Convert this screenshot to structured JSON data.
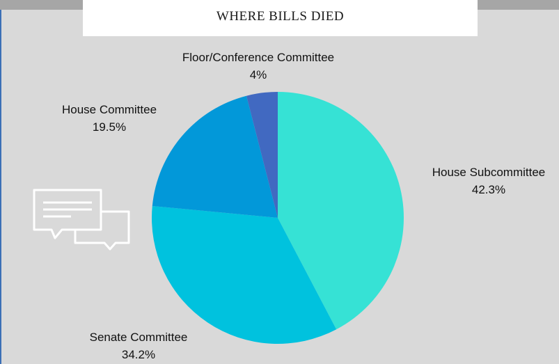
{
  "chart_data": {
    "type": "pie",
    "title": "WHERE BILLS DIED",
    "slices": [
      {
        "label": "House Subcommittee",
        "value": 42.3,
        "value_label": "42.3%",
        "color": "#36e2d5"
      },
      {
        "label": "Senate Committee",
        "value": 34.2,
        "value_label": "34.2%",
        "color": "#00c2de"
      },
      {
        "label": "House Committee",
        "value": 19.5,
        "value_label": "19.5%",
        "color": "#0298d9"
      },
      {
        "label": "Floor/Conference Committee",
        "value": 4,
        "value_label": "4%",
        "color": "#4169c1"
      }
    ],
    "start_at": "top",
    "direction": "clockwise",
    "legend": "none"
  },
  "decoration": {
    "icon": "chat-bubbles-icon",
    "colors": {
      "background": "#d9d9d9",
      "band": "#a6a6a6",
      "title_box": "#ffffff"
    }
  }
}
